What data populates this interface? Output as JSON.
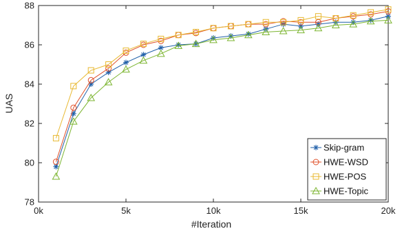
{
  "chart_data": {
    "type": "line",
    "xlabel": "#Iteration",
    "ylabel": "UAS",
    "xlim": [
      0,
      20000
    ],
    "ylim": [
      78,
      88
    ],
    "x_ticks": [
      {
        "value": 0,
        "label": "0k"
      },
      {
        "value": 5000,
        "label": "5k"
      },
      {
        "value": 10000,
        "label": "10k"
      },
      {
        "value": 15000,
        "label": "15k"
      },
      {
        "value": 20000,
        "label": "20k"
      }
    ],
    "y_ticks": [
      {
        "value": 78,
        "label": "78"
      },
      {
        "value": 80,
        "label": "80"
      },
      {
        "value": 82,
        "label": "82"
      },
      {
        "value": 84,
        "label": "84"
      },
      {
        "value": 86,
        "label": "86"
      },
      {
        "value": 88,
        "label": "88"
      }
    ],
    "grid": false,
    "legend_position": "bottom-right",
    "x": [
      1000,
      2000,
      3000,
      4000,
      5000,
      6000,
      7000,
      8000,
      9000,
      10000,
      11000,
      12000,
      13000,
      14000,
      15000,
      16000,
      17000,
      18000,
      19000,
      20000
    ],
    "series": [
      {
        "name": "Skip-gram",
        "color": "#1f5fa8",
        "marker": "star",
        "values": [
          79.8,
          82.5,
          84.0,
          84.6,
          85.1,
          85.5,
          85.85,
          86.0,
          86.05,
          86.35,
          86.45,
          86.55,
          86.8,
          87.05,
          86.95,
          87.05,
          87.15,
          87.15,
          87.25,
          87.45
        ]
      },
      {
        "name": "HWE-WSD",
        "color": "#e0502a",
        "marker": "circle",
        "values": [
          80.05,
          82.8,
          84.2,
          84.8,
          85.6,
          86.0,
          86.2,
          86.5,
          86.6,
          86.85,
          86.95,
          87.05,
          87.05,
          87.2,
          87.15,
          87.15,
          87.35,
          87.45,
          87.55,
          87.7
        ]
      },
      {
        "name": "HWE-POS",
        "color": "#e8b830",
        "marker": "square",
        "values": [
          81.25,
          83.9,
          84.7,
          85.0,
          85.7,
          86.05,
          86.3,
          86.5,
          86.65,
          86.85,
          86.95,
          87.05,
          87.15,
          87.15,
          87.25,
          87.45,
          87.35,
          87.5,
          87.65,
          87.8
        ]
      },
      {
        "name": "HWE-Topic",
        "color": "#7cb530",
        "marker": "triangle",
        "values": [
          79.3,
          82.1,
          83.3,
          84.1,
          84.75,
          85.2,
          85.55,
          85.95,
          86.05,
          86.25,
          86.35,
          86.5,
          86.65,
          86.7,
          86.75,
          86.85,
          87.0,
          87.05,
          87.2,
          87.25
        ]
      }
    ]
  }
}
